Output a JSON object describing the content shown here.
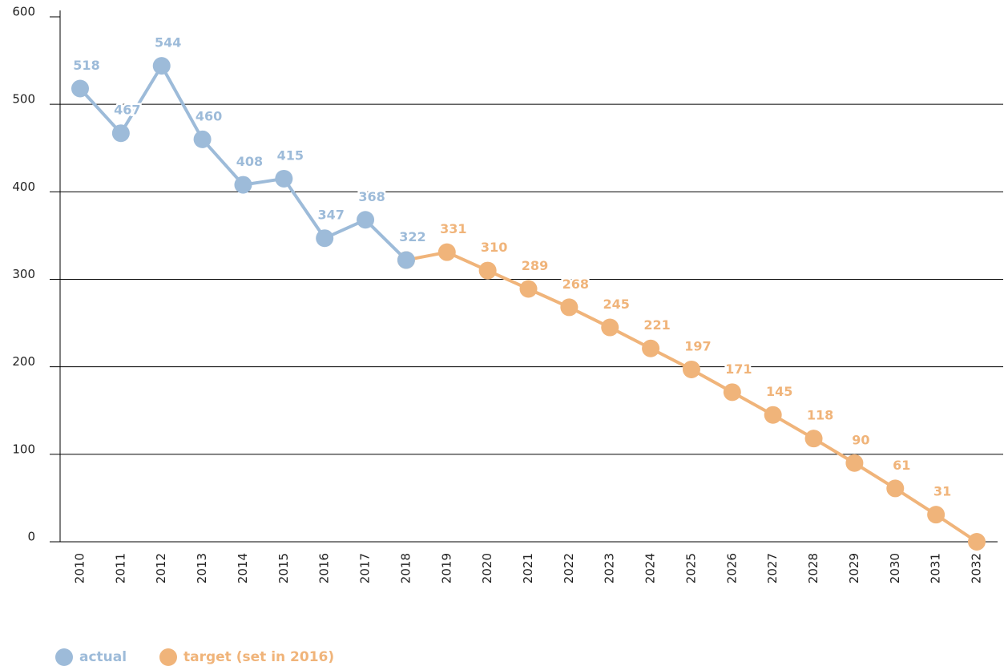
{
  "chart_data": {
    "type": "line",
    "categories": [
      "2010",
      "2011",
      "2012",
      "2013",
      "2014",
      "2015",
      "2016",
      "2017",
      "2018",
      "2019",
      "2020",
      "2021",
      "2022",
      "2023",
      "2024",
      "2025",
      "2026",
      "2027",
      "2028",
      "2029",
      "2030",
      "2031",
      "2032"
    ],
    "series": [
      {
        "name": "actual",
        "color": "#9dbbd9",
        "values": [
          518,
          467,
          544,
          460,
          408,
          415,
          347,
          368,
          322,
          null,
          null,
          null,
          null,
          null,
          null,
          null,
          null,
          null,
          null,
          null,
          null,
          null,
          null
        ],
        "value_labels": [
          518,
          467,
          544,
          460,
          408,
          415,
          347,
          368,
          322,
          null,
          null,
          null,
          null,
          null,
          null,
          null,
          null,
          null,
          null,
          null,
          null,
          null,
          null
        ]
      },
      {
        "name": "target (set in 2016)",
        "color": "#f0b47a",
        "values": [
          null,
          null,
          null,
          null,
          null,
          null,
          null,
          null,
          322,
          331,
          310,
          289,
          268,
          245,
          221,
          197,
          171,
          145,
          118,
          90,
          61,
          31,
          0
        ],
        "value_labels": [
          null,
          null,
          null,
          null,
          null,
          null,
          null,
          null,
          null,
          331,
          310,
          289,
          268,
          245,
          221,
          197,
          171,
          145,
          118,
          90,
          61,
          31,
          null
        ]
      }
    ],
    "ylim": [
      0,
      600
    ],
    "yticks": [
      0,
      100,
      200,
      300,
      400,
      500,
      600
    ],
    "grid": true
  }
}
